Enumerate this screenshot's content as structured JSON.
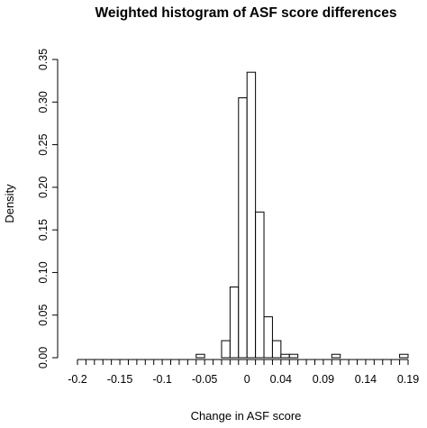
{
  "chart_data": {
    "type": "bar",
    "title": "Weighted histogram of ASF score differences",
    "xlabel": "Change in ASF score",
    "ylabel": "Density",
    "xlim": [
      -0.2,
      0.19
    ],
    "ylim": [
      0,
      0.35
    ],
    "bin_width": 0.01,
    "bin_start": -0.2,
    "values": [
      0,
      0,
      0,
      0,
      0,
      0,
      0,
      0,
      0,
      0,
      0,
      0,
      0,
      0,
      0.004,
      0,
      0,
      0.02,
      0.083,
      0.305,
      0.335,
      0.171,
      0.048,
      0.02,
      0.004,
      0.004,
      0,
      0,
      0,
      0,
      0.004,
      0,
      0,
      0,
      0,
      0,
      0,
      0,
      0.004
    ],
    "x_ticks": [
      -0.2,
      -0.15,
      -0.1,
      -0.05,
      0,
      0.04,
      0.09,
      0.14,
      0.19
    ],
    "x_tick_labels": [
      "-0.2",
      "-0.15",
      "-0.1",
      "-0.05",
      "0",
      "0.04",
      "0.09",
      "0.14",
      "0.19"
    ],
    "y_ticks": [
      0,
      0.05,
      0.1,
      0.15,
      0.2,
      0.25,
      0.3,
      0.35
    ],
    "y_tick_labels": [
      "0.00",
      "0.05",
      "0.10",
      "0.15",
      "0.20",
      "0.25",
      "0.30",
      "0.35"
    ],
    "x_minor_tick_step": 0.01,
    "grid": false,
    "legend": "none"
  }
}
